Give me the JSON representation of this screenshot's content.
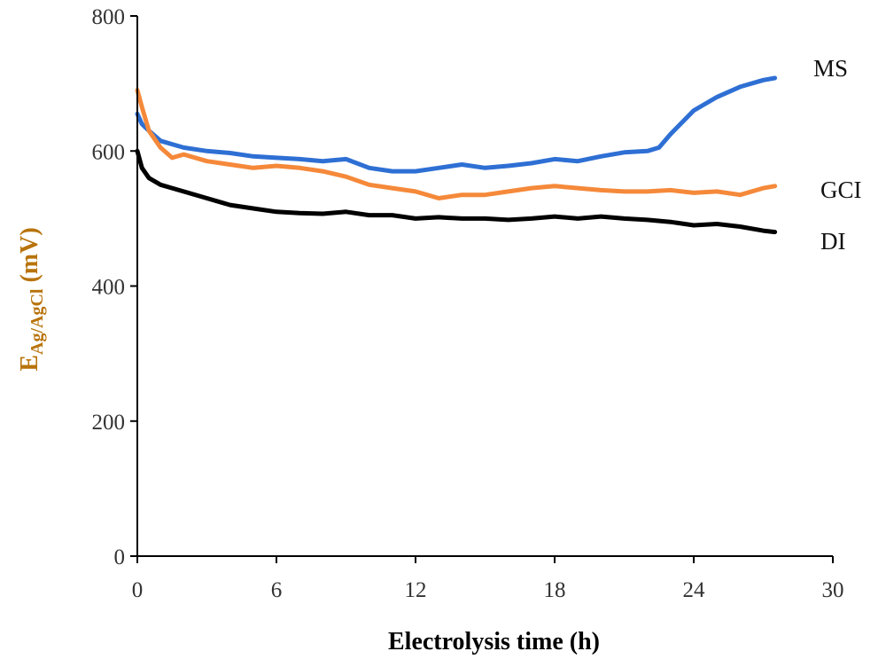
{
  "chart_data": {
    "type": "line",
    "xlabel": "Electrolysis time (h)",
    "ylabel": {
      "main": "E",
      "subscript": "Ag/AgCl",
      "unit": " (mV)"
    },
    "xlim": [
      0,
      30
    ],
    "ylim": [
      0,
      800
    ],
    "xticks": [
      0,
      6,
      12,
      18,
      24,
      30
    ],
    "yticks": [
      0,
      200,
      400,
      600,
      800
    ],
    "grid": false,
    "legend": "inline labels at line ends",
    "series": [
      {
        "name": "MS",
        "color": "#2E6FD4",
        "x": [
          0,
          0.2,
          0.5,
          1,
          1.5,
          2,
          3,
          4,
          5,
          6,
          7,
          8,
          9,
          10,
          11,
          12,
          13,
          14,
          15,
          16,
          17,
          18,
          19,
          20,
          21,
          22,
          22.5,
          23,
          24,
          25,
          26,
          27,
          27.5
        ],
        "y": [
          655,
          640,
          630,
          615,
          610,
          605,
          600,
          597,
          592,
          590,
          588,
          585,
          588,
          575,
          570,
          570,
          575,
          580,
          575,
          578,
          582,
          588,
          585,
          592,
          598,
          600,
          605,
          625,
          660,
          680,
          695,
          705,
          708
        ]
      },
      {
        "name": "GCI",
        "color": "#F5893A",
        "x": [
          0,
          0.2,
          0.5,
          1,
          1.5,
          2,
          3,
          4,
          5,
          6,
          7,
          8,
          9,
          10,
          11,
          12,
          13,
          14,
          15,
          16,
          17,
          18,
          19,
          20,
          21,
          22,
          23,
          24,
          25,
          26,
          27,
          27.5
        ],
        "y": [
          690,
          665,
          630,
          605,
          590,
          595,
          585,
          580,
          575,
          578,
          575,
          570,
          562,
          550,
          545,
          540,
          530,
          535,
          535,
          540,
          545,
          548,
          545,
          542,
          540,
          540,
          542,
          538,
          540,
          535,
          545,
          548
        ]
      },
      {
        "name": "DI",
        "color": "#000000",
        "x": [
          0,
          0.2,
          0.5,
          1,
          1.5,
          2,
          3,
          4,
          5,
          6,
          7,
          8,
          9,
          10,
          11,
          12,
          13,
          14,
          15,
          16,
          17,
          18,
          19,
          20,
          21,
          22,
          23,
          24,
          25,
          26,
          27,
          27.5
        ],
        "y": [
          600,
          575,
          560,
          550,
          545,
          540,
          530,
          520,
          515,
          510,
          508,
          507,
          510,
          505,
          505,
          500,
          502,
          500,
          500,
          498,
          500,
          503,
          500,
          503,
          500,
          498,
          495,
          490,
          492,
          488,
          482,
          480
        ]
      }
    ]
  }
}
